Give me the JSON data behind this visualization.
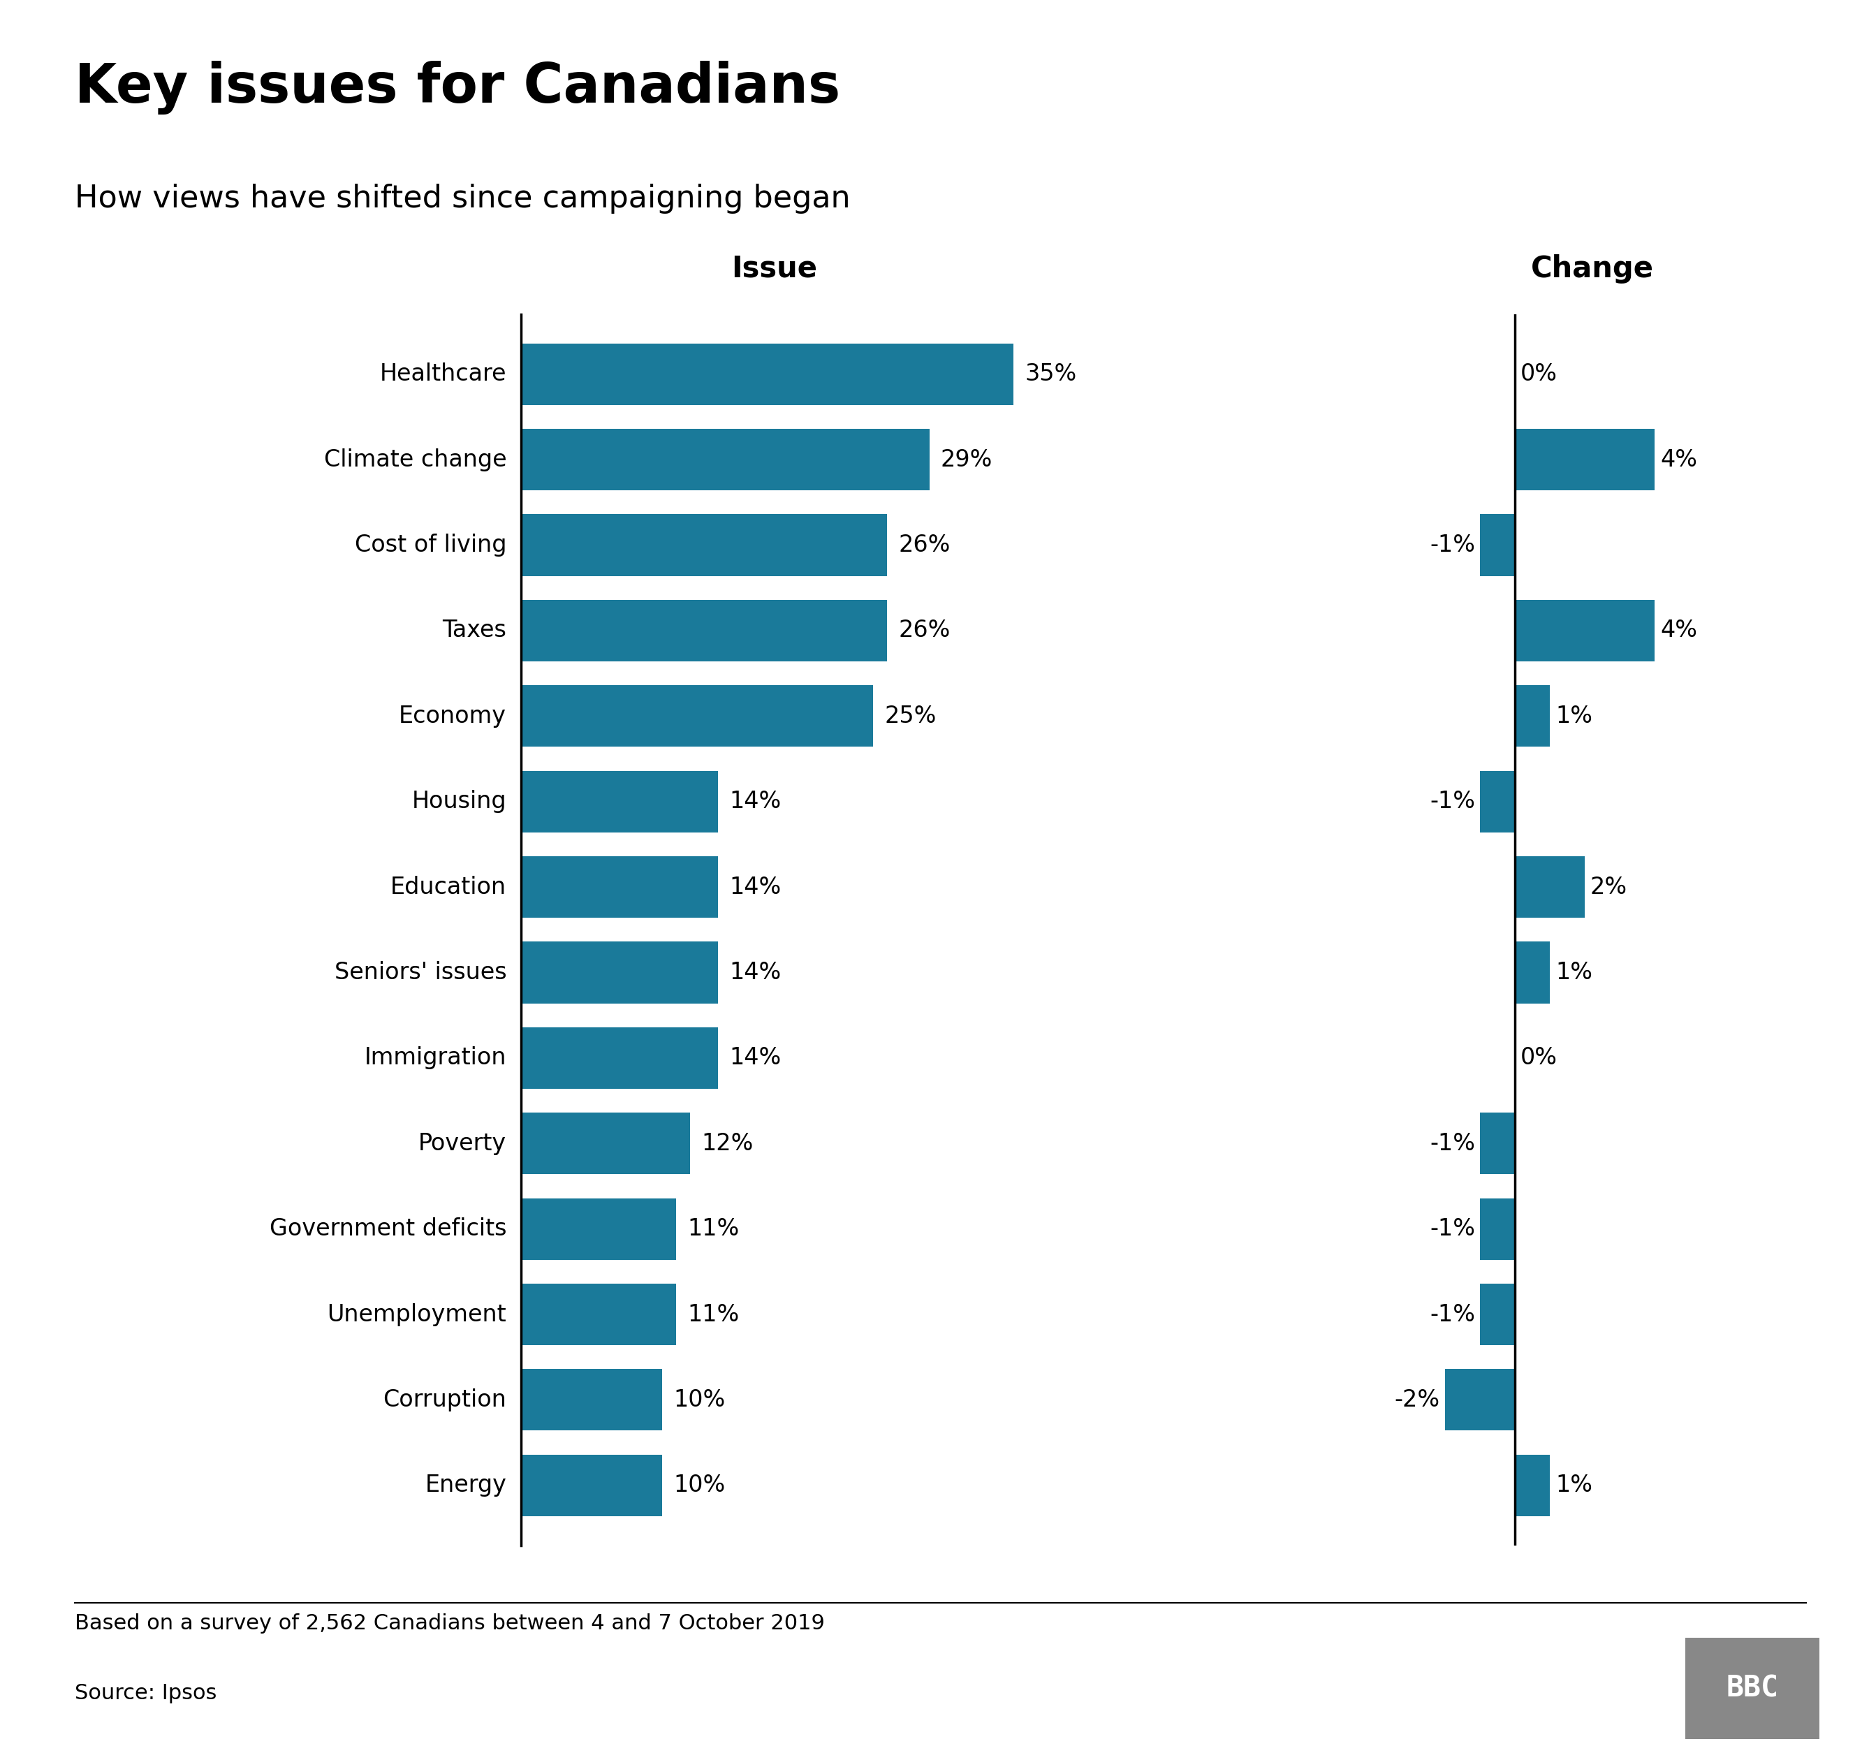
{
  "title": "Key issues for Canadians",
  "subtitle": "How views have shifted since campaigning began",
  "categories": [
    "Healthcare",
    "Climate change",
    "Cost of living",
    "Taxes",
    "Economy",
    "Housing",
    "Education",
    "Seniors' issues",
    "Immigration",
    "Poverty",
    "Government deficits",
    "Unemployment",
    "Corruption",
    "Energy"
  ],
  "issue_values": [
    35,
    29,
    26,
    26,
    25,
    14,
    14,
    14,
    14,
    12,
    11,
    11,
    10,
    10
  ],
  "change_values": [
    0,
    4,
    -1,
    4,
    1,
    -1,
    2,
    1,
    0,
    -1,
    -1,
    -1,
    -2,
    1
  ],
  "bar_color": "#1a7a9a",
  "footnote": "Based on a survey of 2,562 Canadians between 4 and 7 October 2019",
  "source": "Source: Ipsos",
  "bbc_logo_color": "#888888",
  "col1_header": "Issue",
  "col2_header": "Change",
  "background_color": "#ffffff"
}
